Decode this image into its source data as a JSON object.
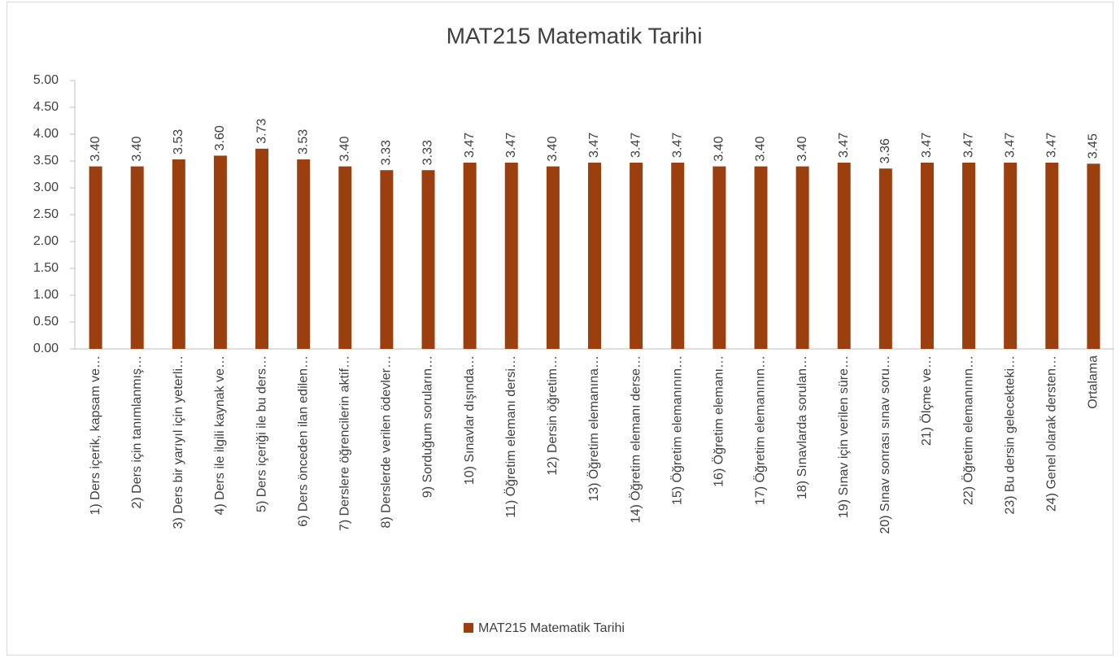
{
  "chart_data": {
    "type": "bar",
    "title": "MAT215 Matematik Tarihi",
    "categories": [
      "1) Ders içerik, kapsam ve…",
      "2) Ders için tanımlanmış…",
      "3) Ders bir yarıyıl için yeterli…",
      "4) Ders ile ilgili kaynak ve…",
      "5) Ders içeriği ile bu ders…",
      "6) Ders önceden ilan edilen…",
      "7) Derslere öğrencilerin aktif…",
      "8) Derslerde verilen ödevler…",
      "9) Sorduğum soruların…",
      "10) Sınavlar dışında…",
      "11)  Öğretim elemanı dersi…",
      "12) Dersin öğretim…",
      "13) Öğretim elemanına…",
      "14) Öğretim elemanı derse…",
      "15) Öğretim elemanının…",
      "16) Öğretim elemanı…",
      "17) Öğretim elemanının…",
      "18) Sınavlarda sorulan…",
      "19) Sınav için verilen süre…",
      "20) Sınav sonrası sınav soru…",
      "21) Ölçme ve…",
      "22)  Öğretim elemanının…",
      "23) Bu dersin gelecekteki…",
      "24) Genel olarak dersten…",
      "Ortalama"
    ],
    "series": [
      {
        "name": "MAT215 Matematik Tarihi",
        "color": "#9c3f0f",
        "values": [
          3.4,
          3.4,
          3.53,
          3.6,
          3.73,
          3.53,
          3.4,
          3.33,
          3.33,
          3.47,
          3.47,
          3.4,
          3.47,
          3.47,
          3.47,
          3.4,
          3.4,
          3.4,
          3.47,
          3.36,
          3.47,
          3.47,
          3.47,
          3.47,
          3.45
        ],
        "value_labels": [
          "3.40",
          "3.40",
          "3.53",
          "3.60",
          "3.73",
          "3.53",
          "3.40",
          "3.33",
          "3.33",
          "3.47",
          "3.47",
          "3.40",
          "3.47",
          "3.47",
          "3.47",
          "3.40",
          "3.40",
          "3.40",
          "3.47",
          "3.36",
          "3.47",
          "3.47",
          "3.47",
          "3.47",
          "3.45"
        ]
      }
    ],
    "ylim": [
      0,
      5
    ],
    "yticks": [
      {
        "value": 0,
        "label": "0.00"
      },
      {
        "value": 0.5,
        "label": "0.50"
      },
      {
        "value": 1,
        "label": "1.00"
      },
      {
        "value": 1.5,
        "label": "1.50"
      },
      {
        "value": 2,
        "label": "2.00"
      },
      {
        "value": 2.5,
        "label": "2.50"
      },
      {
        "value": 3,
        "label": "3.00"
      },
      {
        "value": 3.5,
        "label": "3.50"
      },
      {
        "value": 4,
        "label": "4.00"
      },
      {
        "value": 4.5,
        "label": "4.50"
      },
      {
        "value": 5,
        "label": "5.00"
      }
    ],
    "legend": "bottom"
  }
}
